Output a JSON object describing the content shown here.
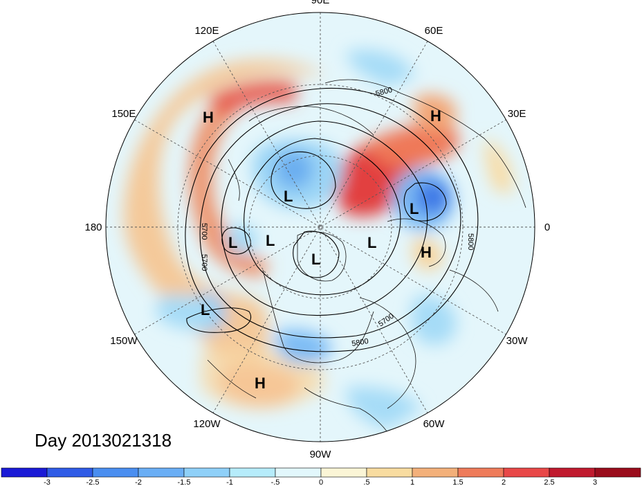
{
  "map": {
    "longitude_labels": [
      {
        "text": "90E",
        "angle": 90
      },
      {
        "text": "60E",
        "angle": 60
      },
      {
        "text": "30E",
        "angle": 30
      },
      {
        "text": "0",
        "angle": 0
      },
      {
        "text": "30W",
        "angle": -30
      },
      {
        "text": "60W",
        "angle": -60
      },
      {
        "text": "90W",
        "angle": -90
      },
      {
        "text": "120W",
        "angle": -120
      },
      {
        "text": "150W",
        "angle": -150
      },
      {
        "text": "180",
        "angle": 180
      },
      {
        "text": "150E",
        "angle": 150
      },
      {
        "text": "120E",
        "angle": 120
      }
    ],
    "pressure_centers": [
      {
        "type": "H",
        "label": "H"
      },
      {
        "type": "H",
        "label": "H"
      },
      {
        "type": "H",
        "label": "H"
      },
      {
        "type": "H",
        "label": "H"
      },
      {
        "type": "L",
        "label": "L"
      },
      {
        "type": "L",
        "label": "L"
      },
      {
        "type": "L",
        "label": "L"
      },
      {
        "type": "L",
        "label": "L"
      },
      {
        "type": "L",
        "label": "L"
      },
      {
        "type": "L",
        "label": "L"
      },
      {
        "type": "L",
        "label": "L"
      }
    ],
    "contour_labels": [
      "5800",
      "5700",
      "5700",
      "5800",
      "5700",
      "5800"
    ],
    "date_label": "Day 2013021318"
  },
  "colorbar": {
    "tick_labels": [
      "-3",
      "-2.5",
      "-2",
      "-1.5",
      "-1",
      "-.5",
      "0",
      ".5",
      "1",
      "1.5",
      "2",
      "2.5",
      "3"
    ],
    "colors": [
      "#1a1ad6",
      "#2f5be6",
      "#4a8ef0",
      "#6aaef5",
      "#8fd0f8",
      "#b6ecfb",
      "#e2f7fc",
      "#fbf5d6",
      "#f8dca0",
      "#f3b07a",
      "#ee7b5a",
      "#e84848",
      "#c01a2e",
      "#9a0c1c"
    ]
  }
}
